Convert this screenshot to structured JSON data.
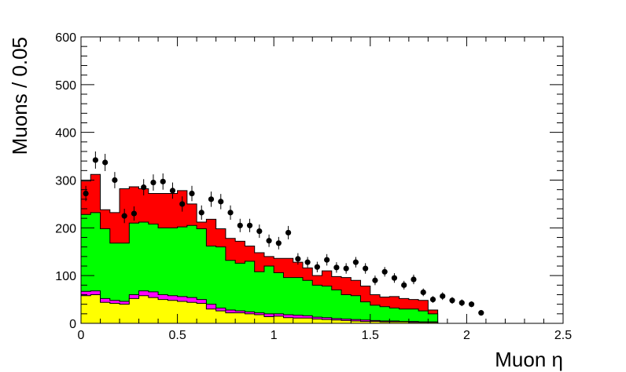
{
  "chart_data": {
    "type": "histogram",
    "xlabel": "Muon η",
    "ylabel": "Muons / 0.05",
    "xlim": [
      0,
      2.5
    ],
    "ylim": [
      0,
      600
    ],
    "bin_width": 0.05,
    "x_ticks": [
      "0",
      "0.5",
      "1",
      "1.5",
      "2",
      "2.5"
    ],
    "y_ticks": [
      "0",
      "100",
      "200",
      "300",
      "400",
      "500",
      "600"
    ],
    "colors": {
      "red": "#ff0000",
      "green": "#00ff00",
      "magenta": "#ff00ff",
      "yellow": "#ffff00",
      "data": "#000000"
    },
    "stack_totals": {
      "red": [
        298,
        312,
        238,
        232,
        282,
        286,
        282,
        272,
        272,
        272,
        278,
        250,
        212,
        218,
        198,
        178,
        172,
        162,
        148,
        140,
        136,
        136,
        128,
        116,
        100,
        110,
        98,
        96,
        90,
        78,
        60,
        55,
        56,
        52,
        50,
        48,
        28
      ],
      "green": [
        228,
        232,
        198,
        168,
        168,
        210,
        212,
        208,
        200,
        200,
        202,
        205,
        198,
        162,
        160,
        132,
        126,
        130,
        108,
        120,
        106,
        96,
        96,
        90,
        80,
        78,
        70,
        60,
        58,
        45,
        38,
        35,
        32,
        30,
        30,
        26,
        20
      ],
      "magenta": [
        67,
        68,
        52,
        48,
        46,
        60,
        68,
        66,
        60,
        58,
        56,
        54,
        50,
        40,
        32,
        28,
        26,
        24,
        22,
        20,
        20,
        18,
        17,
        16,
        13,
        12,
        10,
        9,
        8,
        7,
        6,
        5,
        5,
        4,
        4,
        3,
        3
      ],
      "yellow": [
        58,
        60,
        44,
        42,
        40,
        52,
        58,
        54,
        50,
        48,
        46,
        44,
        42,
        30,
        26,
        22,
        22,
        20,
        18,
        14,
        15,
        12,
        11,
        11,
        9,
        8,
        7,
        6,
        5,
        4,
        4,
        3,
        3,
        3,
        2,
        2,
        2
      ]
    },
    "data_points": {
      "x": [
        0.025,
        0.075,
        0.125,
        0.175,
        0.225,
        0.275,
        0.325,
        0.375,
        0.425,
        0.475,
        0.525,
        0.575,
        0.625,
        0.675,
        0.725,
        0.775,
        0.825,
        0.875,
        0.925,
        0.975,
        1.025,
        1.075,
        1.125,
        1.175,
        1.225,
        1.275,
        1.325,
        1.375,
        1.425,
        1.475,
        1.525,
        1.575,
        1.625,
        1.675,
        1.725,
        1.775,
        1.825,
        1.875,
        1.925,
        1.975,
        2.025,
        2.075
      ],
      "y": [
        272,
        342,
        337,
        300,
        225,
        230,
        285,
        295,
        297,
        278,
        250,
        272,
        232,
        260,
        255,
        232,
        205,
        205,
        193,
        173,
        168,
        190,
        135,
        128,
        118,
        133,
        117,
        115,
        128,
        115,
        90,
        108,
        95,
        80,
        92,
        65,
        50,
        57,
        48,
        43,
        40,
        22
      ],
      "err": [
        16,
        18,
        18,
        17,
        15,
        15,
        17,
        17,
        17,
        17,
        16,
        16,
        15,
        16,
        16,
        15,
        14,
        14,
        14,
        13,
        13,
        14,
        12,
        11,
        11,
        12,
        11,
        11,
        11,
        11,
        10,
        10,
        10,
        9,
        10,
        8,
        7,
        8,
        7,
        7,
        6,
        5
      ]
    }
  }
}
